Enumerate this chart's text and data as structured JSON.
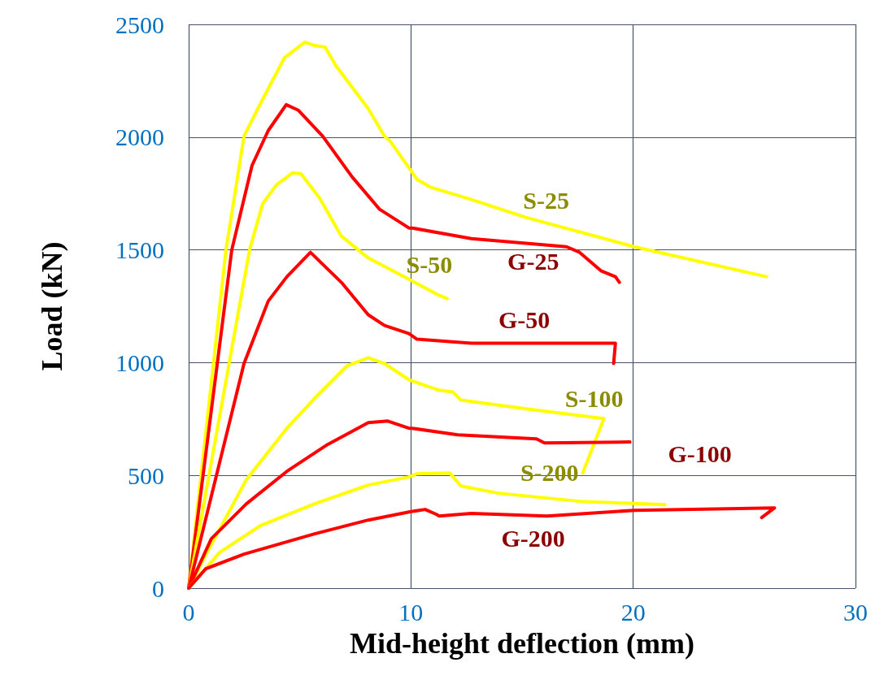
{
  "chart_data": {
    "type": "line",
    "xlabel": "Mid-height deflection (mm)",
    "ylabel": "Load (kN)",
    "xlim": [
      0,
      30
    ],
    "xticks": [
      0,
      10,
      20,
      30
    ],
    "ylim": [
      0,
      2500
    ],
    "yticks": [
      0,
      500,
      1000,
      1500,
      2000,
      2500
    ],
    "grid": true,
    "marker": "none",
    "line_style": "solid",
    "series": [
      {
        "name": "S-25",
        "color": "#ffff00",
        "x": [
          0,
          1.68,
          2.49,
          3.22,
          4.31,
          5.23,
          5.67,
          6.14,
          6.62,
          8.08,
          8.81,
          9.07,
          10.27,
          10.9,
          12.72,
          15.17,
          20.04,
          26.0
        ],
        "values": [
          0,
          1500,
          2004,
          2147,
          2352,
          2421,
          2406,
          2399,
          2317,
          2126,
          2004,
          1982,
          1813,
          1777,
          1723,
          1644,
          1514,
          1381
        ]
      },
      {
        "name": "G-25",
        "color": "#ff0000",
        "x": [
          0,
          1.94,
          2.85,
          3.58,
          4.39,
          4.94,
          6.03,
          7.35,
          8.59,
          9.91,
          10.05,
          12.72,
          17.0,
          17.59,
          18.57,
          19.2,
          19.38
        ],
        "values": [
          0,
          1500,
          1874,
          2029,
          2144,
          2119,
          2004,
          1824,
          1680,
          1597,
          1597,
          1550,
          1514,
          1489,
          1406,
          1381,
          1356
        ]
      },
      {
        "name": "S-50",
        "color": "#ffff00",
        "x": [
          0,
          2.74,
          3.33,
          3.95,
          4.68,
          5.05,
          5.89,
          6.87,
          8.08,
          9.91,
          11.26,
          11.63
        ],
        "values": [
          0,
          1500,
          1705,
          1788,
          1842,
          1838,
          1730,
          1561,
          1464,
          1370,
          1299,
          1284
        ]
      },
      {
        "name": "G-50",
        "color": "#ff0000",
        "x": [
          0,
          2.49,
          3.58,
          4.42,
          5.48,
          6.87,
          8.08,
          8.81,
          9.91,
          10.27,
          12.72,
          19.2,
          19.12
        ],
        "values": [
          0,
          996,
          1273,
          1381,
          1489,
          1356,
          1212,
          1165,
          1129,
          1104,
          1086,
          1086,
          996
        ]
      },
      {
        "name": "S-100",
        "color": "#ffff00",
        "x": [
          0,
          0.77,
          2.6,
          4.42,
          5.67,
          7.13,
          8.08,
          8.81,
          9.91,
          11.26,
          11.88,
          12.25,
          15.17,
          18.68,
          17.73
        ],
        "values": [
          0,
          147,
          482,
          709,
          842,
          986,
          1022,
          996,
          924,
          878,
          870,
          834,
          795,
          752,
          511
        ]
      },
      {
        "name": "G-100",
        "color": "#ff0000",
        "x": [
          0,
          1.02,
          2.6,
          4.42,
          6.25,
          8.08,
          8.96,
          9.91,
          10.05,
          12.1,
          15.65,
          16.01,
          19.85
        ],
        "values": [
          0,
          219,
          374,
          518,
          637,
          734,
          741,
          709,
          709,
          680,
          662,
          644,
          648
        ]
      },
      {
        "name": "S-200",
        "color": "#ffff00",
        "x": [
          0,
          1.39,
          3.22,
          5.67,
          8.08,
          9.91,
          10.27,
          11.74,
          12.25,
          13.93,
          17.59,
          21.43
        ],
        "values": [
          0,
          158,
          277,
          374,
          457,
          493,
          507,
          511,
          453,
          421,
          385,
          370
        ]
      },
      {
        "name": "G-200",
        "color": "#ff0000",
        "x": [
          0,
          0.77,
          2.49,
          5.67,
          8.08,
          9.91,
          10.64,
          11.15,
          11.26,
          12.72,
          16.12,
          20.04,
          26.36,
          25.78
        ],
        "values": [
          0,
          86,
          151,
          241,
          302,
          338,
          349,
          327,
          320,
          331,
          320,
          345,
          356,
          313
        ]
      }
    ]
  }
}
